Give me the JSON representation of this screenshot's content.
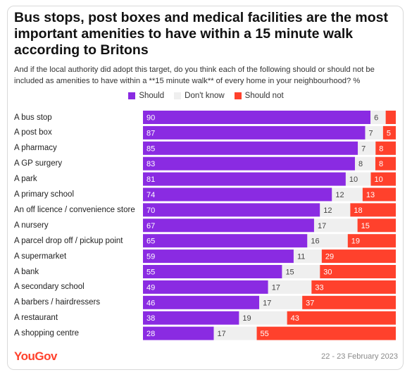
{
  "chart_data": {
    "type": "bar",
    "stacked": true,
    "orientation": "horizontal",
    "title": "Bus stops, post boxes and medical facilities are the most important amenities to have within a 15 minute walk according to Britons",
    "subtitle": "And if the local authority did adopt this target, do you think each of the following should or should not be included as amenities to have within a **15 minute walk** of every home in your neighbourhood? %",
    "categories": [
      "A bus stop",
      "A post box",
      "A pharmacy",
      "A GP surgery",
      "A park",
      "A primary school",
      "An off licence / convenience store",
      "A nursery",
      "A parcel drop off / pickup point",
      "A supermarket",
      "A bank",
      "A secondary school",
      "A barbers / hairdressers",
      "A restaurant",
      "A shopping centre"
    ],
    "series": [
      {
        "name": "Should",
        "color": "#8a2be2",
        "values": [
          90,
          87,
          85,
          83,
          81,
          74,
          70,
          67,
          65,
          59,
          55,
          49,
          46,
          38,
          28
        ]
      },
      {
        "name": "Don't know",
        "color": "#efefef",
        "values": [
          6,
          7,
          7,
          8,
          10,
          12,
          12,
          17,
          16,
          11,
          15,
          17,
          17,
          19,
          17
        ]
      },
      {
        "name": "Should not",
        "color": "#ff412c",
        "values": [
          4,
          5,
          8,
          8,
          10,
          13,
          18,
          15,
          19,
          29,
          30,
          33,
          37,
          43,
          55
        ]
      }
    ],
    "value_labels": [
      [
        "90",
        "6",
        ""
      ],
      [
        "87",
        "7",
        "5"
      ],
      [
        "85",
        "7",
        "8"
      ],
      [
        "83",
        "8",
        "8"
      ],
      [
        "81",
        "10",
        "10"
      ],
      [
        "74",
        "12",
        "13"
      ],
      [
        "70",
        "12",
        "18"
      ],
      [
        "67",
        "17",
        "15"
      ],
      [
        "65",
        "16",
        "19"
      ],
      [
        "59",
        "11",
        "29"
      ],
      [
        "55",
        "15",
        "30"
      ],
      [
        "49",
        "17",
        "33"
      ],
      [
        "46",
        "17",
        "37"
      ],
      [
        "38",
        "19",
        "43"
      ],
      [
        "28",
        "17",
        "55"
      ]
    ],
    "legend_position": "top-center",
    "grid": false
  },
  "footer": {
    "brand": "YouGov",
    "date": "22 - 23 February 2023"
  }
}
